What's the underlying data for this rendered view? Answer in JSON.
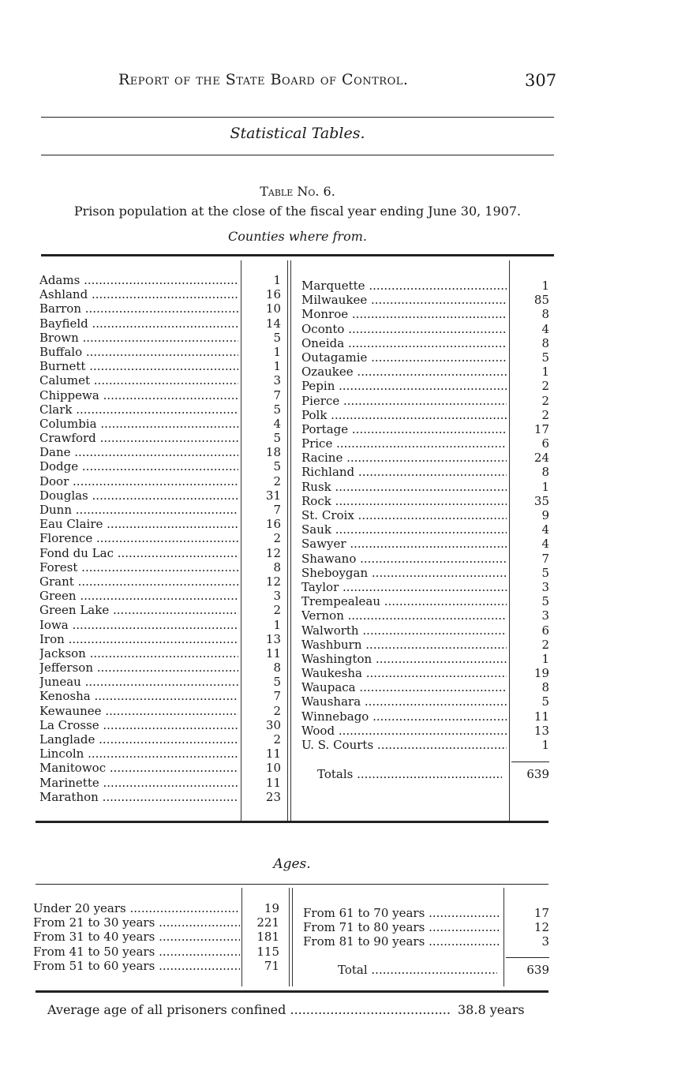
{
  "header": {
    "running_title": "Report of the State Board of Control.",
    "page_number": "307"
  },
  "section_title": "Statistical Tables.",
  "table": {
    "number": "Table No. 6.",
    "caption": "Prison population at the close of the fiscal year ending June 30, 1907.",
    "subtitle": "Counties where from."
  },
  "counties_left": [
    {
      "name": "Adams",
      "value": "1"
    },
    {
      "name": "Ashland",
      "value": "16"
    },
    {
      "name": "Barron",
      "value": "10"
    },
    {
      "name": "Bayfield",
      "value": "14"
    },
    {
      "name": "Brown",
      "value": "5"
    },
    {
      "name": "Buffalo",
      "value": "1"
    },
    {
      "name": "Burnett",
      "value": "1"
    },
    {
      "name": "Calumet",
      "value": "3"
    },
    {
      "name": "Chippewa",
      "value": "7"
    },
    {
      "name": "Clark",
      "value": "5"
    },
    {
      "name": "Columbia",
      "value": "4"
    },
    {
      "name": "Crawford",
      "value": "5"
    },
    {
      "name": "Dane",
      "value": "18"
    },
    {
      "name": "Dodge",
      "value": "5"
    },
    {
      "name": "Door",
      "value": "2"
    },
    {
      "name": "Douglas",
      "value": "31"
    },
    {
      "name": "Dunn",
      "value": "7"
    },
    {
      "name": "Eau Claire",
      "value": "16"
    },
    {
      "name": "Florence",
      "value": "2"
    },
    {
      "name": "Fond du Lac",
      "value": "12"
    },
    {
      "name": "Forest",
      "value": "8"
    },
    {
      "name": "Grant",
      "value": "12"
    },
    {
      "name": "Green",
      "value": "3"
    },
    {
      "name": "Green Lake",
      "value": "2"
    },
    {
      "name": "Iowa",
      "value": "1"
    },
    {
      "name": "Iron",
      "value": "13"
    },
    {
      "name": "Jackson",
      "value": "11"
    },
    {
      "name": "Jefferson",
      "value": "8"
    },
    {
      "name": "Juneau",
      "value": "5"
    },
    {
      "name": "Kenosha",
      "value": "7"
    },
    {
      "name": "Kewaunee",
      "value": "2"
    },
    {
      "name": "La Crosse",
      "value": "30"
    },
    {
      "name": "Langlade",
      "value": "2"
    },
    {
      "name": "Lincoln",
      "value": "11"
    },
    {
      "name": "Manitowoc",
      "value": "10"
    },
    {
      "name": "Marinette",
      "value": "11"
    },
    {
      "name": "Marathon",
      "value": "23"
    }
  ],
  "counties_right": [
    {
      "name": "Marquette",
      "value": "1"
    },
    {
      "name": "Milwaukee",
      "value": "85"
    },
    {
      "name": "Monroe",
      "value": "8"
    },
    {
      "name": "Oconto",
      "value": "4"
    },
    {
      "name": "Oneida",
      "value": "8"
    },
    {
      "name": "Outagamie",
      "value": "5"
    },
    {
      "name": "Ozaukee",
      "value": "1"
    },
    {
      "name": "Pepin",
      "value": "2"
    },
    {
      "name": "Pierce",
      "value": "2"
    },
    {
      "name": "Polk",
      "value": "2"
    },
    {
      "name": "Portage",
      "value": "17"
    },
    {
      "name": "Price",
      "value": "6"
    },
    {
      "name": "Racine",
      "value": "24"
    },
    {
      "name": "Richland",
      "value": "8"
    },
    {
      "name": "Rusk",
      "value": "1"
    },
    {
      "name": "Rock",
      "value": "35"
    },
    {
      "name": "St. Croix",
      "value": "9"
    },
    {
      "name": "Sauk",
      "value": "4"
    },
    {
      "name": "Sawyer",
      "value": "4"
    },
    {
      "name": "Shawano",
      "value": "7"
    },
    {
      "name": "Sheboygan",
      "value": "5"
    },
    {
      "name": "Taylor",
      "value": "3"
    },
    {
      "name": "Trempealeau",
      "value": "5"
    },
    {
      "name": "Vernon",
      "value": "3"
    },
    {
      "name": "Walworth",
      "value": "6"
    },
    {
      "name": "Washburn",
      "value": "2"
    },
    {
      "name": "Washington",
      "value": "1"
    },
    {
      "name": "Waukesha",
      "value": "19"
    },
    {
      "name": "Waupaca",
      "value": "8"
    },
    {
      "name": "Waushara",
      "value": "5"
    },
    {
      "name": "Winnebago",
      "value": "11"
    },
    {
      "name": "Wood",
      "value": "13"
    },
    {
      "name": "U. S. Courts",
      "value": "1"
    }
  ],
  "counties_total": {
    "label": "Totals",
    "value": "639"
  },
  "ages_title": "Ages.",
  "ages_left": [
    {
      "name": "Under 20 years",
      "value": "19"
    },
    {
      "name": "From 21 to 30 years",
      "value": "221"
    },
    {
      "name": "From 31 to 40 years",
      "value": "181"
    },
    {
      "name": "From 41 to 50 years",
      "value": "115"
    },
    {
      "name": "From 51 to 60 years",
      "value": "71"
    }
  ],
  "ages_right": [
    {
      "name": "From 61 to 70 years",
      "value": "17"
    },
    {
      "name": "From 71 to 80 years",
      "value": "12"
    },
    {
      "name": "From 81 to 90 years",
      "value": "3"
    }
  ],
  "ages_total": {
    "label": "Total",
    "value": "639"
  },
  "average": {
    "label": "Average age of all prisoners confined",
    "value": "38.8 years"
  }
}
